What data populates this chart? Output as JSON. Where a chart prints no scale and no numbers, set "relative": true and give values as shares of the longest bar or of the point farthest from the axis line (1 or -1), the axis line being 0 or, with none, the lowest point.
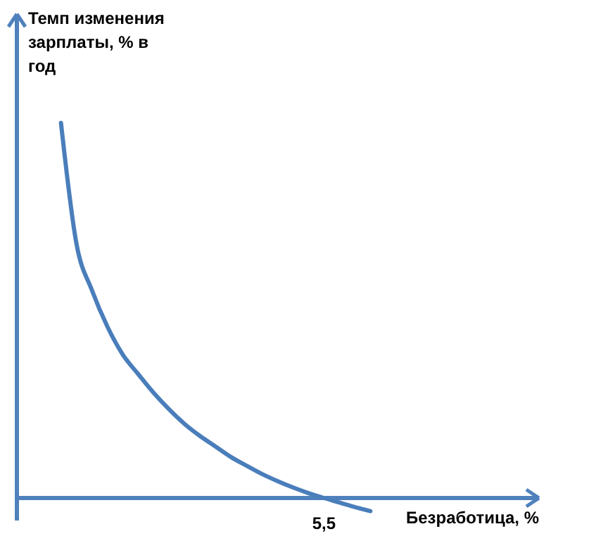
{
  "chart_data": {
    "type": "line",
    "relative": true,
    "ylabel": "Темп изменения зарплаты, % в год",
    "xlabel": "Безработица, %",
    "annotations": [
      "5,5"
    ],
    "categories": [
      null,
      null,
      null,
      null,
      null,
      null,
      null,
      null,
      null,
      null,
      null,
      null,
      null,
      null,
      null,
      null,
      null,
      null,
      null,
      null,
      null
    ],
    "series": [
      {
        "color": "#4a7ebb",
        "values": [
          1,
          0.678,
          0.554,
          0.457,
          0.382,
          0.33,
          0.28,
          0.236,
          0.197,
          0.165,
          0.137,
          0.109,
          0.086,
          0.064,
          0.045,
          0.028,
          0.013,
          0,
          -0.012,
          -0.024,
          -0.035
        ]
      }
    ],
    "ref_lines": [
      {
        "axis": "y",
        "value": 0,
        "color": "#4f81bd"
      }
    ],
    "grid": false,
    "legend": false,
    "marker": "none",
    "line_style": "solid"
  }
}
